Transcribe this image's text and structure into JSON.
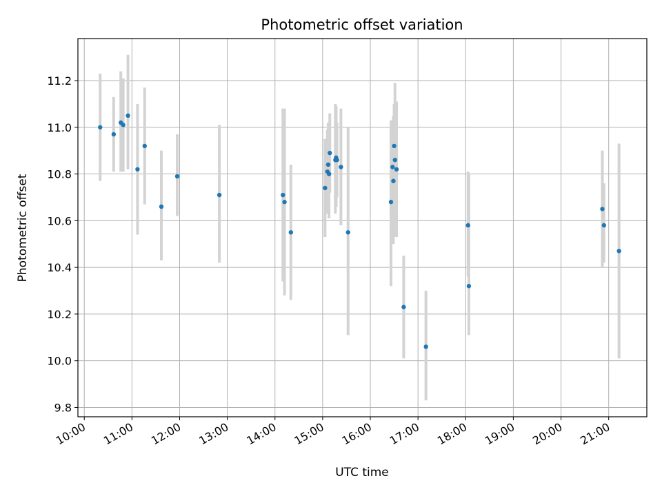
{
  "chart_data": {
    "type": "scatter",
    "title": "Photometric offset variation",
    "xlabel": "UTC time",
    "ylabel": "Photometric offset",
    "x_axis_kind": "time",
    "xlim": [
      "09:52",
      "21:48"
    ],
    "ylim": [
      9.76,
      11.38
    ],
    "grid": true,
    "x_ticks": [
      "10:00",
      "11:00",
      "12:00",
      "13:00",
      "14:00",
      "15:00",
      "16:00",
      "17:00",
      "18:00",
      "19:00",
      "20:00",
      "21:00"
    ],
    "y_ticks": [
      "9.8",
      "10.0",
      "10.2",
      "10.4",
      "10.6",
      "10.8",
      "11.0",
      "11.2"
    ],
    "series": [
      {
        "marker_color": "#1f77b4",
        "errorbar_color": "#d3d3d3",
        "points": [
          {
            "x": "10:20",
            "y": 11.0,
            "err_low": 10.77,
            "err_high": 11.23
          },
          {
            "x": "10:37",
            "y": 10.97,
            "err_low": 10.81,
            "err_high": 11.13
          },
          {
            "x": "10:46",
            "y": 11.02,
            "err_low": 10.81,
            "err_high": 11.24
          },
          {
            "x": "10:49",
            "y": 11.01,
            "err_low": 10.81,
            "err_high": 11.21
          },
          {
            "x": "10:55",
            "y": 11.05,
            "err_low": 10.82,
            "err_high": 11.31
          },
          {
            "x": "11:07",
            "y": 10.82,
            "err_low": 10.54,
            "err_high": 11.1
          },
          {
            "x": "11:16",
            "y": 10.92,
            "err_low": 10.67,
            "err_high": 11.17
          },
          {
            "x": "11:37",
            "y": 10.66,
            "err_low": 10.43,
            "err_high": 10.9
          },
          {
            "x": "11:57",
            "y": 10.79,
            "err_low": 10.62,
            "err_high": 10.97
          },
          {
            "x": "12:50",
            "y": 10.71,
            "err_low": 10.42,
            "err_high": 11.01
          },
          {
            "x": "14:10",
            "y": 10.71,
            "err_low": 10.34,
            "err_high": 11.08
          },
          {
            "x": "14:12",
            "y": 10.68,
            "err_low": 10.28,
            "err_high": 11.08
          },
          {
            "x": "14:20",
            "y": 10.55,
            "err_low": 10.26,
            "err_high": 10.84
          },
          {
            "x": "15:03",
            "y": 10.74,
            "err_low": 10.53,
            "err_high": 10.95
          },
          {
            "x": "15:06",
            "y": 10.81,
            "err_low": 10.63,
            "err_high": 10.99
          },
          {
            "x": "15:07",
            "y": 10.84,
            "err_low": 10.67,
            "err_high": 11.02
          },
          {
            "x": "15:08",
            "y": 10.8,
            "err_low": 10.61,
            "err_high": 11.0
          },
          {
            "x": "15:09",
            "y": 10.89,
            "err_low": 10.72,
            "err_high": 11.06
          },
          {
            "x": "15:16",
            "y": 10.86,
            "err_low": 10.63,
            "err_high": 11.1
          },
          {
            "x": "15:17",
            "y": 10.87,
            "err_low": 10.66,
            "err_high": 11.09
          },
          {
            "x": "15:18",
            "y": 10.86,
            "err_low": 10.7,
            "err_high": 11.02
          },
          {
            "x": "15:23",
            "y": 10.83,
            "err_low": 10.58,
            "err_high": 11.08
          },
          {
            "x": "15:32",
            "y": 10.55,
            "err_low": 10.11,
            "err_high": 11.0
          },
          {
            "x": "16:26",
            "y": 10.68,
            "err_low": 10.32,
            "err_high": 11.03
          },
          {
            "x": "16:28",
            "y": 10.83,
            "err_low": 10.65,
            "err_high": 11.0
          },
          {
            "x": "16:29",
            "y": 10.77,
            "err_low": 10.5,
            "err_high": 11.05
          },
          {
            "x": "16:30",
            "y": 10.92,
            "err_low": 10.69,
            "err_high": 11.1
          },
          {
            "x": "16:31",
            "y": 10.86,
            "err_low": 10.53,
            "err_high": 11.19
          },
          {
            "x": "16:33",
            "y": 10.82,
            "err_low": 10.53,
            "err_high": 11.11
          },
          {
            "x": "16:42",
            "y": 10.23,
            "err_low": 10.01,
            "err_high": 10.45
          },
          {
            "x": "17:10",
            "y": 10.06,
            "err_low": 9.83,
            "err_high": 10.3
          },
          {
            "x": "18:03",
            "y": 10.58,
            "err_low": 10.36,
            "err_high": 10.81
          },
          {
            "x": "18:04",
            "y": 10.32,
            "err_low": 10.11,
            "err_high": 10.8
          },
          {
            "x": "20:52",
            "y": 10.65,
            "err_low": 10.4,
            "err_high": 10.9
          },
          {
            "x": "20:54",
            "y": 10.58,
            "err_low": 10.42,
            "err_high": 10.76
          },
          {
            "x": "21:13",
            "y": 10.47,
            "err_low": 10.01,
            "err_high": 10.93
          }
        ]
      }
    ]
  }
}
